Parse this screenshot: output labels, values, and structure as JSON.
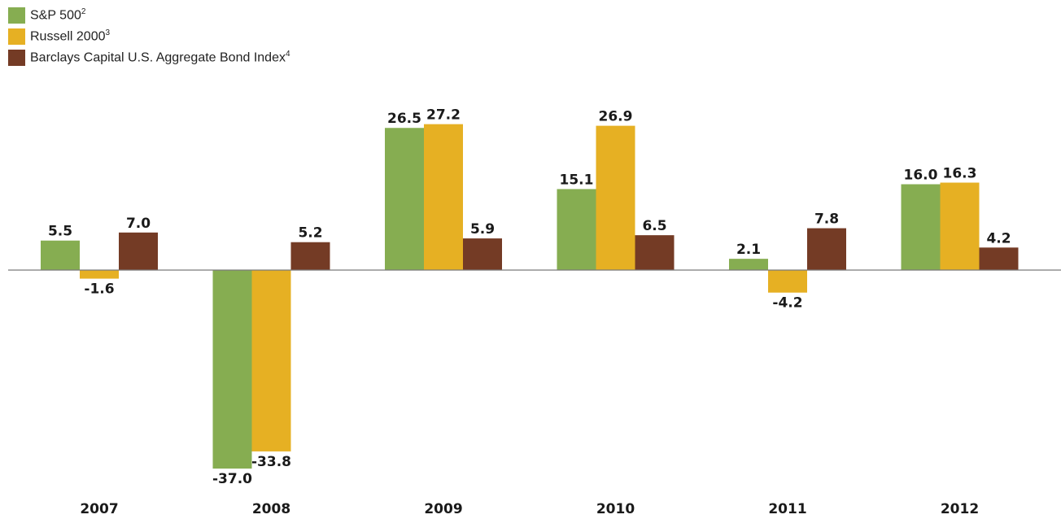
{
  "chart_data": {
    "type": "bar",
    "categories": [
      "2007",
      "2008",
      "2009",
      "2010",
      "2011",
      "2012"
    ],
    "series": [
      {
        "name": "S&P 500",
        "sup": "2",
        "color": "#86ad51",
        "values": [
          5.5,
          -37.0,
          26.5,
          15.1,
          2.1,
          16.0
        ],
        "labels": [
          "5.5",
          "-37.0",
          "26.5",
          "15.1",
          "2.1",
          "16.0"
        ]
      },
      {
        "name": "Russell 2000",
        "sup": "3",
        "color": "#e6b023",
        "values": [
          -1.6,
          -33.8,
          27.2,
          26.9,
          -4.2,
          16.3
        ],
        "labels": [
          "-1.6",
          "-33.8",
          "27.2",
          "26.9",
          "-4.2",
          "16.3"
        ]
      },
      {
        "name": "Barclays Capital U.S. Aggregate Bond Index",
        "sup": "4",
        "color": "#743b25",
        "values": [
          7.0,
          5.2,
          5.9,
          6.5,
          7.8,
          4.2
        ],
        "labels": [
          "7.0",
          "5.2",
          "5.9",
          "6.5",
          "7.8",
          "4.2"
        ]
      }
    ],
    "ylim": [
      -37.0,
      27.2
    ],
    "legend_position": "top-left",
    "grid": false,
    "zero_line": true,
    "axis_line_color": "#7a7a7a"
  }
}
